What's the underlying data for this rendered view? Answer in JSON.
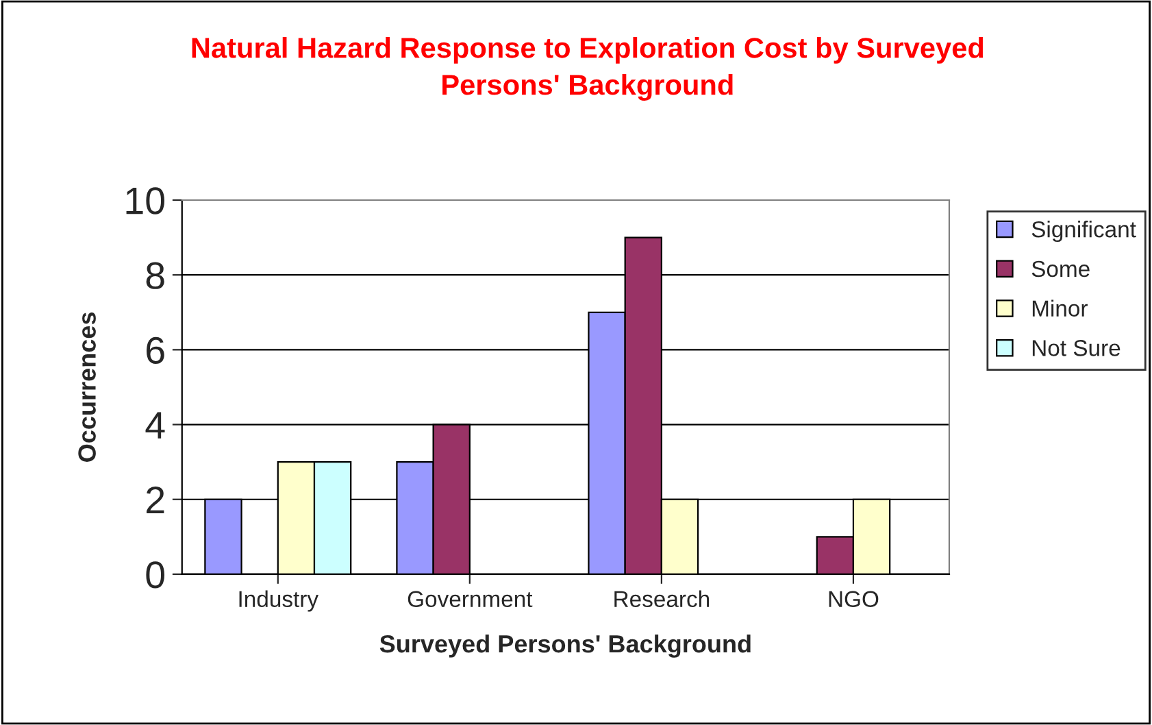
{
  "chart_data": {
    "type": "bar",
    "title": "Natural Hazard Response to Exploration Cost by Surveyed\nPersons' Background",
    "xlabel": "Surveyed Persons' Background",
    "ylabel": "Occurrences",
    "categories": [
      "Industry",
      "Government",
      "Research",
      "NGO"
    ],
    "series": [
      {
        "name": "Significant",
        "color": "#9999ff",
        "values": [
          2,
          3,
          7,
          null
        ]
      },
      {
        "name": "Some",
        "color": "#993366",
        "values": [
          null,
          4,
          9,
          1
        ]
      },
      {
        "name": "Minor",
        "color": "#ffffcc",
        "values": [
          3,
          null,
          2,
          2
        ]
      },
      {
        "name": "Not Sure",
        "color": "#ccffff",
        "values": [
          3,
          null,
          null,
          null
        ]
      }
    ],
    "ylim": [
      0,
      10
    ],
    "yticks": [
      0,
      2,
      4,
      6,
      8,
      10
    ],
    "grid": "y",
    "legend": "right"
  }
}
